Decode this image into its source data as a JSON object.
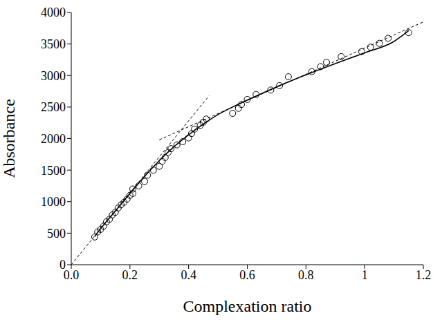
{
  "chart_data": {
    "type": "scatter",
    "x_label": "Complexation ratio",
    "y_label": "Absorbance",
    "xlim": [
      0,
      1.2
    ],
    "xticks": [
      {
        "value": 0,
        "label": "0.0"
      },
      0.2,
      0.4,
      0.6,
      0.8,
      1,
      {
        "value": 1.2,
        "label": "1.2"
      }
    ],
    "ylim": [
      0,
      4000
    ],
    "yticks": [
      0,
      500,
      1000,
      1500,
      2000,
      2500,
      3000,
      3500,
      4000
    ],
    "grid": false,
    "series": [
      {
        "type": "scatter",
        "marker": "circle-open",
        "color": "#000000",
        "x": [
          0.08,
          0.09,
          0.1,
          0.11,
          0.12,
          0.13,
          0.14,
          0.15,
          0.16,
          0.17,
          0.18,
          0.19,
          0.2,
          0.21,
          0.21,
          0.23,
          0.25,
          0.26,
          0.28,
          0.3,
          0.31,
          0.32,
          0.33,
          0.34,
          0.36,
          0.38,
          0.4,
          0.41,
          0.42,
          0.44,
          0.45,
          0.46,
          0.55,
          0.57,
          0.58,
          0.6,
          0.63,
          0.68,
          0.71,
          0.74,
          0.82,
          0.85,
          0.87,
          0.92,
          0.99,
          1.02,
          1.05,
          1.08,
          1.15
        ],
        "values": [
          440,
          520,
          560,
          610,
          680,
          720,
          790,
          830,
          900,
          950,
          990,
          1040,
          1100,
          1130,
          1200,
          1250,
          1320,
          1420,
          1500,
          1560,
          1640,
          1700,
          1780,
          1840,
          1900,
          1950,
          2010,
          2080,
          2150,
          2210,
          2260,
          2310,
          2400,
          2480,
          2540,
          2620,
          2700,
          2770,
          2840,
          2980,
          3060,
          3140,
          3210,
          3300,
          3380,
          3450,
          3510,
          3590,
          3680
        ]
      },
      {
        "type": "line",
        "line_style": "solid",
        "color": "#000000",
        "x": [
          0.08,
          0.1,
          0.15,
          0.2,
          0.25,
          0.3,
          0.35,
          0.4,
          0.45,
          0.5,
          0.55,
          0.6,
          0.7,
          0.8,
          0.9,
          1,
          1.1,
          1.15
        ],
        "values": [
          450,
          570,
          850,
          1130,
          1400,
          1650,
          1870,
          2060,
          2230,
          2380,
          2500,
          2610,
          2820,
          3010,
          3190,
          3360,
          3540,
          3710
        ]
      },
      {
        "type": "line",
        "line_style": "dashed",
        "color": "#000000",
        "x": [
          0,
          0.47
        ],
        "values": [
          0,
          2680
        ]
      },
      {
        "type": "line",
        "line_style": "dashed",
        "color": "#000000",
        "x": [
          0.3,
          1.2
        ],
        "values": [
          1980,
          3850
        ]
      }
    ]
  }
}
